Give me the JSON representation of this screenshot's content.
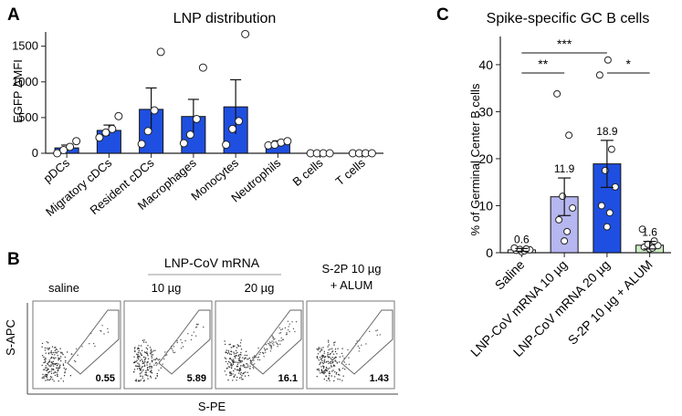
{
  "panels": {
    "a": "A",
    "b": "B",
    "c": "C"
  },
  "chart_data": [
    {
      "type": "bar",
      "panel": "A",
      "title": "LNP distribution",
      "ylabel": "EGFP ΔMFI",
      "xlabel": "",
      "ylim": [
        0,
        1700
      ],
      "yticks": [
        0,
        500,
        1000,
        1500
      ],
      "ytick_labels": [
        "0",
        "500",
        "1000",
        "1500"
      ],
      "categories": [
        "pDCs",
        "Migratory cDCs",
        "Resident cDCs",
        "Macrophages",
        "Monocytes",
        "Neutrophils",
        "B cells",
        "T cells"
      ],
      "values": [
        75,
        320,
        615,
        515,
        650,
        140,
        0,
        0
      ],
      "error": [
        40,
        75,
        300,
        240,
        380,
        35,
        0,
        0
      ],
      "points": [
        [
          0,
          45,
          90,
          170
        ],
        [
          220,
          290,
          340,
          520
        ],
        [
          130,
          310,
          600,
          1420
        ],
        [
          140,
          260,
          480,
          1200
        ],
        [
          120,
          340,
          450,
          1670
        ],
        [
          110,
          120,
          150,
          170
        ],
        [
          0,
          0,
          0,
          0
        ],
        [
          0,
          0,
          0,
          0
        ]
      ],
      "bar_color": "#1f4fe0"
    },
    {
      "type": "bar",
      "panel": "C",
      "title": "Spike-specific GC B cells",
      "ylabel": "% of Germinal Center B cells",
      "xlabel": "",
      "ylim": [
        0,
        46
      ],
      "yticks": [
        0,
        10,
        20,
        30,
        40
      ],
      "ytick_labels": [
        "0",
        "10",
        "20",
        "30",
        "40"
      ],
      "categories": [
        "Saline",
        "LNP-CoV mRNA 10 µg",
        "LNP-CoV mRNA 20 µg",
        "S-2P 10 µg + ALUM"
      ],
      "values": [
        0.6,
        11.9,
        18.9,
        1.6
      ],
      "value_labels": [
        "0.6",
        "11.9",
        "18.9",
        "1.6"
      ],
      "error": [
        0.3,
        4.0,
        5.0,
        0.8
      ],
      "points": [
        [
          0.2,
          0.4,
          0.5,
          0.6,
          0.7,
          0.8,
          1.0
        ],
        [
          2.5,
          4.5,
          7.0,
          9.5,
          12.0,
          25.0,
          33.8
        ],
        [
          5.5,
          8.5,
          10.0,
          14.0,
          17.5,
          22.0,
          37.8,
          41.0
        ],
        [
          0.8,
          1.0,
          1.2,
          1.5,
          1.8,
          2.5,
          5.0
        ]
      ],
      "bar_colors": [
        "#ffffff",
        "#b6b6f0",
        "#1f4fe0",
        "#ccecc4"
      ],
      "significance": [
        {
          "from": 0,
          "to": 1,
          "label": "**"
        },
        {
          "from": 0,
          "to": 2,
          "label": "***"
        },
        {
          "from": 2,
          "to": 3,
          "label": "*"
        }
      ]
    }
  ],
  "flow": {
    "header_group": "LNP-CoV mRNA",
    "xlabel": "S-PE",
    "ylabel": "S-APC",
    "plots": [
      {
        "label": "saline",
        "value": "0.55",
        "density": 0.15
      },
      {
        "label": "10 µg",
        "value": "5.89",
        "density": 0.35
      },
      {
        "label": "20 µg",
        "value": "16.1",
        "density": 0.8
      },
      {
        "label": "S-2P 10 µg",
        "label2": "+ ALUM",
        "value": "1.43",
        "density": 0.2
      }
    ]
  }
}
